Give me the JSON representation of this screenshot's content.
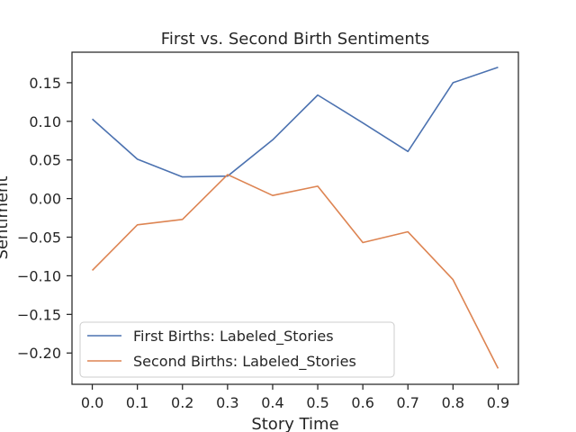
{
  "chart_data": {
    "type": "line",
    "title": "First vs. Second Birth Sentiments",
    "xlabel": "Story Time",
    "ylabel": "Sentiment",
    "x": [
      0.0,
      0.1,
      0.2,
      0.3,
      0.4,
      0.5,
      0.6,
      0.7,
      0.8,
      0.9
    ],
    "xticks": [
      "0.0",
      "0.1",
      "0.2",
      "0.3",
      "0.4",
      "0.5",
      "0.6",
      "0.7",
      "0.8",
      "0.9"
    ],
    "yticks": [
      "0.15",
      "0.10",
      "0.05",
      "0.00",
      "−0.05",
      "−0.10",
      "−0.15",
      "−0.20"
    ],
    "ytick_values": [
      0.15,
      0.1,
      0.05,
      0.0,
      -0.05,
      -0.1,
      -0.15,
      -0.2
    ],
    "xlim": [
      -0.045,
      0.945
    ],
    "ylim": [
      -0.2405,
      0.1895
    ],
    "grid": false,
    "legend_position": "lower-left",
    "series": [
      {
        "name": "First Births: Labeled_Stories",
        "color": "#4c72b0",
        "values": [
          0.103,
          0.051,
          0.028,
          0.029,
          0.076,
          0.134,
          0.098,
          0.061,
          0.15,
          0.17
        ]
      },
      {
        "name": "Second Births: Labeled_Stories",
        "color": "#dd8452",
        "values": [
          -0.093,
          -0.034,
          -0.027,
          0.031,
          0.004,
          0.016,
          -0.057,
          -0.043,
          -0.105,
          -0.22
        ]
      }
    ]
  }
}
